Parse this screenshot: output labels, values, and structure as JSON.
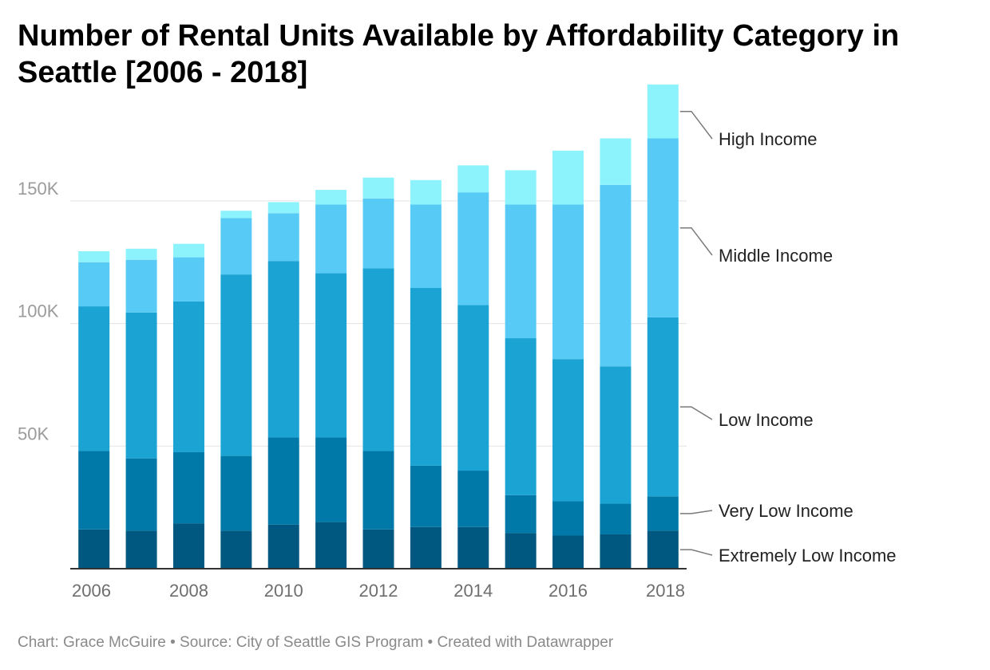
{
  "title": "Number of Rental Units Available by Affordability Category in Seattle [2006 - 2018]",
  "footer": {
    "chart_credit": "Chart: Grace McGuire",
    "separator": "•",
    "source": "Source: City of Seattle GIS Program",
    "created_with": "Created with Datawrapper"
  },
  "colors": {
    "Extremely Low Income": "#00577f",
    "Very Low Income": "#0079a8",
    "Low Income": "#1aa3d3",
    "Middle Income": "#57cbf5",
    "High Income": "#8cf2fc",
    "grid": "#e3e3e3",
    "axis": "#333333"
  },
  "chart_data": {
    "type": "bar",
    "stacked": true,
    "legend_position": "right",
    "grid": true,
    "ylim": [
      0,
      190000
    ],
    "yticks": [
      50000,
      100000,
      150000
    ],
    "ytick_labels": [
      "50K",
      "100K",
      "150K"
    ],
    "xtick_labels": [
      "2006",
      "2008",
      "2010",
      "2012",
      "2014",
      "2016",
      "2018"
    ],
    "categories": [
      "2006",
      "2007",
      "2008",
      "2009",
      "2010",
      "2011",
      "2012",
      "2013",
      "2014",
      "2015",
      "2016",
      "2017",
      "2018"
    ],
    "series": [
      {
        "name": "Extremely Low Income",
        "values": [
          16000,
          15500,
          18500,
          15500,
          18000,
          19000,
          16000,
          17000,
          17000,
          14500,
          13500,
          14000,
          15500
        ]
      },
      {
        "name": "Very Low Income",
        "values": [
          32000,
          29500,
          29000,
          30500,
          35500,
          34500,
          32000,
          25000,
          23000,
          15500,
          14000,
          12500,
          14000
        ]
      },
      {
        "name": "Low Income",
        "values": [
          59000,
          59500,
          61500,
          74000,
          72000,
          67000,
          74500,
          72500,
          67500,
          64000,
          58000,
          56000,
          73000
        ]
      },
      {
        "name": "Middle Income",
        "values": [
          18000,
          21500,
          18000,
          23000,
          19500,
          28000,
          28500,
          34000,
          46000,
          54500,
          63000,
          74000,
          73000
        ]
      },
      {
        "name": "High Income",
        "values": [
          4500,
          4500,
          5500,
          3000,
          4500,
          6000,
          8500,
          10000,
          11000,
          14000,
          22000,
          19000,
          22000
        ]
      }
    ]
  }
}
